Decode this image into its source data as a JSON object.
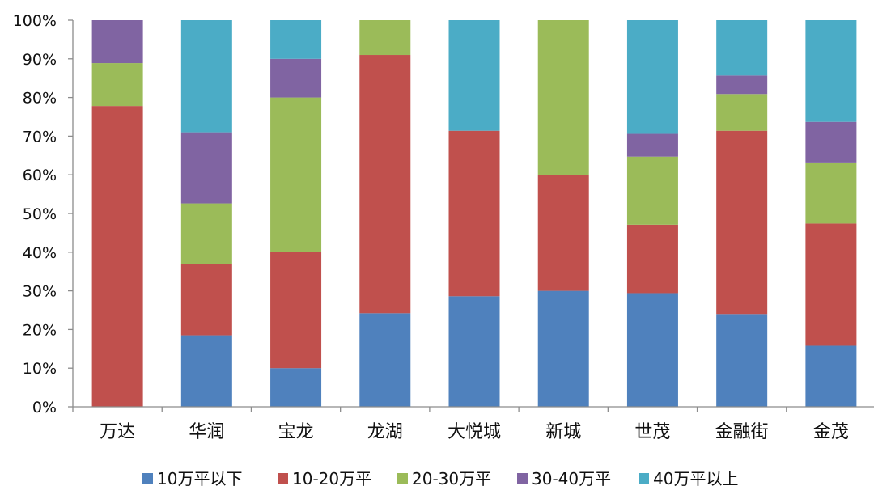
{
  "chart_data": {
    "type": "bar",
    "stacked": true,
    "normalized": true,
    "title": "",
    "xlabel": "",
    "ylabel": "",
    "ylim": [
      0,
      100
    ],
    "yticks": [
      "0%",
      "10%",
      "20%",
      "30%",
      "40%",
      "50%",
      "60%",
      "70%",
      "80%",
      "90%",
      "100%"
    ],
    "grid": false,
    "legend_position": "bottom",
    "categories": [
      "万达",
      "华润",
      "宝龙",
      "龙湖",
      "大悦城",
      "新城",
      "世茂",
      "金融街",
      "金茂"
    ],
    "series": [
      {
        "name": "10万平以下",
        "color": "#4f81bd",
        "values": [
          0,
          18.5,
          10,
          24.2,
          28.6,
          30,
          29.4,
          24,
          15.8
        ]
      },
      {
        "name": "10-20万平",
        "color": "#c0504d",
        "values": [
          77.8,
          18.5,
          30,
          66.8,
          42.8,
          30,
          17.7,
          47.4,
          31.6
        ]
      },
      {
        "name": "20-30万平",
        "color": "#9bbb59",
        "values": [
          11.1,
          15.6,
          40,
          9,
          0,
          40,
          17.6,
          9.5,
          15.8
        ]
      },
      {
        "name": "30-40万平",
        "color": "#8064a2",
        "values": [
          11.1,
          18.4,
          10,
          0,
          0,
          0,
          5.9,
          4.8,
          10.5
        ]
      },
      {
        "name": "40万平以上",
        "color": "#4bacc6",
        "values": [
          0,
          29,
          10,
          0,
          28.6,
          0,
          29.4,
          14.3,
          26.3
        ]
      }
    ]
  }
}
